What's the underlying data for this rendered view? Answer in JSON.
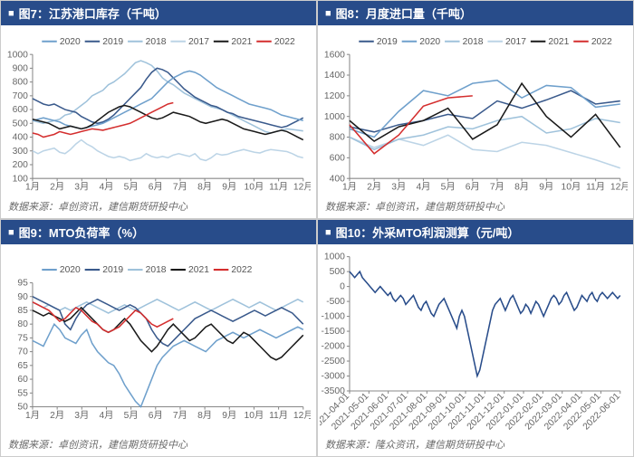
{
  "colors": {
    "navy": "#284c8a",
    "title_bg": "#284c8a",
    "axis": "#888888",
    "text": "#666666",
    "series": {
      "2017": "#bcd4e6",
      "2018": "#9fc2db",
      "2019": "#3a5a8c",
      "2020": "#6fa0cc",
      "2021": "#1a1a1a",
      "2022": "#d42e2e"
    }
  },
  "charts": [
    {
      "id": "chart7",
      "title": "图7：江苏港口库存（千吨）",
      "source": "数据来源：卓创资讯，建信期货研投中心",
      "type": "line",
      "legend_order": [
        "2020",
        "2019",
        "2018",
        "2017",
        "2021",
        "2022"
      ],
      "x_labels": [
        "1月",
        "2月",
        "3月",
        "4月",
        "5月",
        "6月",
        "7月",
        "8月",
        "9月",
        "10月",
        "11月",
        "12月"
      ],
      "y_min": 100,
      "y_max": 1000,
      "y_step": 100,
      "series": {
        "2017": [
          300,
          280,
          300,
          310,
          320,
          290,
          280,
          310,
          350,
          380,
          350,
          330,
          300,
          280,
          260,
          250,
          260,
          250,
          230,
          240,
          250,
          280,
          260,
          250,
          260,
          250,
          270,
          280,
          270,
          260,
          280,
          240,
          230,
          250,
          280,
          270,
          275,
          290,
          300,
          310,
          300,
          290,
          285,
          300,
          310,
          305,
          300,
          295,
          280,
          260,
          250
        ],
        "2018": [
          520,
          510,
          500,
          510,
          520,
          530,
          560,
          570,
          600,
          630,
          660,
          700,
          720,
          740,
          780,
          800,
          830,
          860,
          900,
          940,
          955,
          940,
          920,
          880,
          830,
          800,
          780,
          750,
          720,
          700,
          680,
          660,
          640,
          620,
          610,
          600,
          580,
          560,
          540,
          520,
          500,
          480,
          460,
          440,
          430,
          440,
          450,
          460,
          455,
          450,
          445
        ],
        "2019": [
          680,
          660,
          640,
          630,
          640,
          620,
          600,
          590,
          580,
          550,
          530,
          510,
          500,
          510,
          530,
          560,
          600,
          640,
          680,
          720,
          760,
          820,
          870,
          900,
          890,
          870,
          830,
          790,
          750,
          720,
          690,
          670,
          650,
          630,
          620,
          600,
          580,
          570,
          550,
          540,
          530,
          520,
          510,
          500,
          490,
          480,
          470,
          480,
          500,
          520,
          540
        ],
        "2020": [
          520,
          530,
          540,
          530,
          520,
          510,
          490,
          480,
          470,
          460,
          470,
          480,
          490,
          500,
          520,
          540,
          560,
          580,
          600,
          620,
          640,
          660,
          680,
          720,
          760,
          800,
          830,
          850,
          870,
          880,
          870,
          850,
          820,
          790,
          760,
          740,
          720,
          700,
          680,
          660,
          640,
          630,
          620,
          610,
          600,
          580,
          560,
          550,
          540,
          530,
          520
        ],
        "2021": [
          530,
          520,
          510,
          500,
          480,
          460,
          470,
          480,
          470,
          460,
          470,
          490,
          520,
          550,
          580,
          600,
          620,
          630,
          620,
          600,
          580,
          560,
          540,
          530,
          540,
          560,
          580,
          570,
          560,
          550,
          530,
          510,
          500,
          510,
          520,
          530,
          520,
          500,
          480,
          460,
          450,
          440,
          430,
          420,
          430,
          440,
          450,
          440,
          420,
          400,
          380
        ],
        "2022": [
          430,
          420,
          400,
          410,
          420,
          440,
          430,
          420,
          430,
          440,
          450,
          460,
          455,
          450,
          460,
          470,
          480,
          490,
          500,
          520,
          540,
          560,
          580,
          600,
          620,
          640,
          650
        ]
      }
    },
    {
      "id": "chart8",
      "title": "图8：月度进口量（千吨）",
      "source": "数据来源：卓创资讯，建信期货研投中心",
      "type": "line",
      "legend_order": [
        "2019",
        "2020",
        "2018",
        "2017",
        "2021",
        "2022"
      ],
      "x_labels": [
        "1月",
        "2月",
        "3月",
        "4月",
        "5月",
        "6月",
        "7月",
        "8月",
        "9月",
        "10月",
        "11月",
        "12月"
      ],
      "y_min": 400,
      "y_max": 1600,
      "y_step": 200,
      "series": {
        "2017": [
          800,
          700,
          780,
          720,
          820,
          680,
          660,
          750,
          720,
          650,
          580,
          500
        ],
        "2018": [
          800,
          680,
          780,
          820,
          900,
          880,
          960,
          1000,
          840,
          880,
          980,
          940
        ],
        "2019": [
          900,
          850,
          920,
          960,
          1020,
          980,
          1150,
          1080,
          1160,
          1250,
          1120,
          1150
        ],
        "2020": [
          880,
          800,
          1050,
          1250,
          1200,
          1320,
          1350,
          1180,
          1300,
          1280,
          1090,
          1120
        ],
        "2021": [
          960,
          760,
          900,
          960,
          1080,
          780,
          920,
          1320,
          1000,
          800,
          1020,
          700
        ],
        "2022": [
          920,
          640,
          820,
          1100,
          1180,
          1200
        ]
      }
    },
    {
      "id": "chart9",
      "title": "图9：MTO负荷率（%）",
      "source": "数据来源：卓创资讯，建信期货研投中心",
      "type": "line",
      "legend_order": [
        "2020",
        "2019",
        "2018",
        "2021",
        "2022"
      ],
      "x_labels": [
        "1月",
        "2月",
        "3月",
        "4月",
        "5月",
        "6月",
        "7月",
        "8月",
        "9月",
        "10月",
        "11月",
        "12月"
      ],
      "y_min": 50,
      "y_max": 95,
      "y_step": 5,
      "series": {
        "2018": [
          88,
          87,
          86,
          87,
          86,
          85,
          86,
          85,
          86,
          87,
          88,
          87,
          86,
          85,
          84,
          85,
          86,
          87,
          86,
          85,
          86,
          87,
          88,
          89,
          88,
          87,
          86,
          85,
          86,
          87,
          88,
          87,
          86,
          85,
          86,
          87,
          88,
          89,
          88,
          87,
          86,
          87,
          88,
          87,
          86,
          85,
          86,
          87,
          88,
          89,
          88
        ],
        "2019": [
          90,
          89,
          88,
          87,
          86,
          85,
          80,
          78,
          82,
          85,
          87,
          88,
          89,
          88,
          87,
          86,
          85,
          86,
          87,
          86,
          84,
          82,
          78,
          75,
          73,
          72,
          74,
          76,
          78,
          80,
          82,
          83,
          84,
          85,
          84,
          83,
          82,
          81,
          82,
          83,
          84,
          85,
          84,
          83,
          84,
          85,
          86,
          85,
          84,
          82,
          80
        ],
        "2020": [
          74,
          73,
          72,
          76,
          80,
          78,
          75,
          74,
          73,
          76,
          78,
          73,
          70,
          68,
          66,
          65,
          62,
          58,
          55,
          52,
          50,
          55,
          60,
          65,
          68,
          70,
          72,
          73,
          74,
          73,
          72,
          71,
          70,
          72,
          74,
          75,
          76,
          77,
          76,
          75,
          76,
          77,
          78,
          77,
          76,
          75,
          76,
          77,
          78,
          79,
          78
        ],
        "2021": [
          85,
          84,
          83,
          84,
          83,
          82,
          81,
          82,
          84,
          86,
          84,
          82,
          80,
          78,
          77,
          78,
          80,
          82,
          80,
          77,
          74,
          72,
          70,
          72,
          75,
          78,
          80,
          78,
          76,
          74,
          75,
          77,
          79,
          80,
          78,
          76,
          74,
          73,
          75,
          77,
          76,
          74,
          72,
          70,
          68,
          67,
          68,
          70,
          72,
          74,
          76
        ],
        "2022": [
          88,
          87,
          86,
          85,
          83,
          81,
          82,
          84,
          86,
          85,
          83,
          81,
          80,
          78,
          77,
          78,
          79,
          81,
          83,
          85,
          84,
          82,
          80,
          79,
          80,
          81,
          82
        ]
      }
    },
    {
      "id": "chart10",
      "title": "图10：外采MTO利润测算（元/吨）",
      "source": "数据来源：隆众资讯，建信期货研投中心",
      "type": "line",
      "legend_order": [],
      "x_labels": [
        "2021-04-01",
        "2021-05-01",
        "2021-06-01",
        "2021-07-01",
        "2021-08-01",
        "2021-09-01",
        "2021-10-01",
        "2021-11-01",
        "2021-12-01",
        "2022-01-01",
        "2022-02-01",
        "2022-03-01",
        "2022-04-01",
        "2022-05-01",
        "2022-06-01"
      ],
      "x_rotate": true,
      "y_min": -3500,
      "y_max": 1000,
      "y_step": 500,
      "series": {
        "main": [
          500,
          400,
          300,
          400,
          500,
          300,
          200,
          100,
          0,
          -100,
          -200,
          -100,
          0,
          -100,
          -200,
          -300,
          -200,
          -400,
          -500,
          -400,
          -300,
          -400,
          -600,
          -500,
          -400,
          -300,
          -500,
          -700,
          -800,
          -600,
          -500,
          -700,
          -900,
          -1000,
          -800,
          -600,
          -500,
          -400,
          -600,
          -800,
          -1000,
          -1200,
          -1400,
          -1000,
          -800,
          -1000,
          -1400,
          -1800,
          -2200,
          -2600,
          -3000,
          -2800,
          -2400,
          -2000,
          -1600,
          -1200,
          -800,
          -600,
          -500,
          -400,
          -600,
          -800,
          -600,
          -400,
          -300,
          -500,
          -700,
          -900,
          -800,
          -600,
          -700,
          -900,
          -700,
          -500,
          -600,
          -800,
          -1000,
          -800,
          -600,
          -400,
          -300,
          -400,
          -600,
          -500,
          -300,
          -200,
          -400,
          -600,
          -800,
          -700,
          -500,
          -300,
          -400,
          -500,
          -300,
          -200,
          -400,
          -500,
          -300,
          -200,
          -300,
          -400,
          -300,
          -200,
          -300,
          -400,
          -300
        ]
      },
      "single_color": "#284c8a"
    }
  ]
}
